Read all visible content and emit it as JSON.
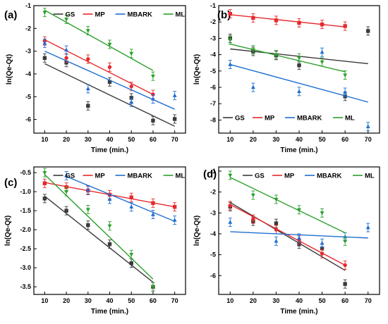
{
  "figure": {
    "colors": {
      "GS": "#3a3a3a",
      "MP": "#e8282b",
      "MBARK": "#1f6fd1",
      "ML": "#2ca02c"
    }
  },
  "chart_data": [
    {
      "type": "scatter",
      "panel_label": "(a)",
      "xlabel": "Time (min.)",
      "ylabel": "ln(Qe-Qt)",
      "xlim": [
        5,
        75
      ],
      "ylim": [
        -6.6,
        -1
      ],
      "xticks": [
        10,
        20,
        30,
        40,
        50,
        60,
        70
      ],
      "yticks": [
        -6,
        -5,
        -4,
        -3,
        -2,
        -1
      ],
      "legend_position": "top-center",
      "legend": [
        "GS",
        "MP",
        "MBARK",
        "ML"
      ],
      "series": [
        {
          "name": "GS",
          "marker": "square",
          "x": [
            10,
            20,
            30,
            40,
            50,
            60,
            70
          ],
          "y": [
            -3.3,
            -3.5,
            -5.4,
            -4.35,
            -5.05,
            -6.05,
            -5.98
          ],
          "fit": [
            [
              10,
              -3.55
            ],
            [
              70,
              -6.3
            ]
          ]
        },
        {
          "name": "MP",
          "marker": "circle",
          "x": [
            10,
            20,
            30,
            40,
            50,
            60
          ],
          "y": [
            -2.55,
            -3.3,
            -3.35,
            -3.7,
            -4.55,
            -4.9
          ],
          "fit": [
            [
              10,
              -2.5
            ],
            [
              60,
              -4.9
            ]
          ]
        },
        {
          "name": "MBARK",
          "marker": "triangle-up",
          "x": [
            10,
            20,
            30,
            50,
            60,
            70
          ],
          "y": [
            -2.65,
            -2.95,
            -4.65,
            -5.25,
            -5.1,
            -4.95
          ],
          "fit": [
            [
              10,
              -3.0
            ],
            [
              70,
              -5.55
            ]
          ]
        },
        {
          "name": "ML",
          "marker": "triangle-down",
          "x": [
            10,
            20,
            30,
            40,
            50,
            60
          ],
          "y": [
            -1.3,
            -1.6,
            -2.1,
            -2.7,
            -3.1,
            -4.1
          ],
          "fit": [
            [
              10,
              -1.2
            ],
            [
              60,
              -3.85
            ]
          ]
        }
      ]
    },
    {
      "type": "scatter",
      "panel_label": "(b)",
      "xlabel": "Time (min.)",
      "ylabel": "ln(Qe-Qt)",
      "xlim": [
        5,
        75
      ],
      "ylim": [
        -8.8,
        -1
      ],
      "xticks": [
        10,
        20,
        30,
        40,
        50,
        60,
        70
      ],
      "yticks": [
        -8,
        -7,
        -6,
        -5,
        -4,
        -3,
        -2,
        -1
      ],
      "legend_position": "bottom-center",
      "legend": [
        "GS",
        "MP",
        "MBARK",
        "ML"
      ],
      "series": [
        {
          "name": "GS",
          "marker": "square",
          "x": [
            10,
            20,
            30,
            40,
            60,
            70
          ],
          "y": [
            -3.0,
            -3.8,
            -4.05,
            -4.65,
            -6.55,
            -2.55
          ],
          "fit": [
            [
              10,
              -3.65
            ],
            [
              70,
              -4.55
            ]
          ]
        },
        {
          "name": "MP",
          "marker": "square",
          "x": [
            10,
            20,
            30,
            40,
            50,
            60
          ],
          "y": [
            -1.5,
            -1.75,
            -1.9,
            -2.05,
            -2.15,
            -2.25
          ],
          "fit": [
            [
              10,
              -1.55
            ],
            [
              60,
              -2.3
            ]
          ]
        },
        {
          "name": "MBARK",
          "marker": "triangle-up",
          "x": [
            10,
            20,
            40,
            50,
            60,
            70
          ],
          "y": [
            -4.6,
            -6.0,
            -6.25,
            -3.85,
            -6.3,
            -8.4
          ],
          "fit": [
            [
              10,
              -4.6
            ],
            [
              70,
              -6.9
            ]
          ]
        },
        {
          "name": "ML",
          "marker": "triangle-down",
          "x": [
            10,
            20,
            30,
            40,
            50,
            60
          ],
          "y": [
            -3.1,
            -3.7,
            -4.0,
            -4.2,
            -4.45,
            -5.25
          ],
          "fit": [
            [
              10,
              -3.35
            ],
            [
              60,
              -5.05
            ]
          ]
        }
      ]
    },
    {
      "type": "scatter",
      "panel_label": "(c)",
      "xlabel": "Time (min.)",
      "ylabel": "ln(Qe-Qt)",
      "xlim": [
        5,
        75
      ],
      "ylim": [
        -3.7,
        -0.35
      ],
      "xticks": [
        10,
        20,
        30,
        40,
        50,
        60,
        70
      ],
      "yticks": [
        -3.5,
        -3.0,
        -2.5,
        -2.0,
        -1.5,
        -1.0,
        -0.5
      ],
      "legend_position": "top-center",
      "legend": [
        "GS",
        "MP",
        "MBARK",
        "ML"
      ],
      "series": [
        {
          "name": "GS",
          "marker": "square",
          "x": [
            10,
            20,
            30,
            40,
            50,
            60
          ],
          "y": [
            -1.18,
            -1.5,
            -1.88,
            -2.38,
            -2.88,
            -3.5
          ],
          "fit": [
            [
              10,
              -1.12
            ],
            [
              60,
              -3.38
            ]
          ]
        },
        {
          "name": "MP",
          "marker": "square",
          "x": [
            10,
            20,
            30,
            40,
            50,
            60,
            70
          ],
          "y": [
            -0.78,
            -0.88,
            -0.97,
            -1.08,
            -1.15,
            -1.3,
            -1.4
          ],
          "fit": [
            [
              10,
              -0.76
            ],
            [
              70,
              -1.4
            ]
          ]
        },
        {
          "name": "MBARK",
          "marker": "triangle-up",
          "x": [
            20,
            30,
            40,
            50,
            60,
            70
          ],
          "y": [
            -0.58,
            -0.95,
            -1.2,
            -1.4,
            -1.6,
            -1.75
          ],
          "fit": [
            [
              20,
              -0.6
            ],
            [
              70,
              -1.78
            ]
          ]
        },
        {
          "name": "ML",
          "marker": "triangle-down",
          "x": [
            10,
            20,
            30,
            40,
            50,
            60
          ],
          "y": [
            -0.5,
            -1.0,
            -1.47,
            -1.9,
            -2.65,
            -3.5
          ],
          "fit": [
            [
              10,
              -0.55
            ],
            [
              60,
              -3.3
            ]
          ]
        }
      ]
    },
    {
      "type": "scatter",
      "panel_label": "(d)",
      "xlabel": "Time (min.)",
      "ylabel": "ln(Qe-Qt)",
      "xlim": [
        5,
        75
      ],
      "ylim": [
        -6.9,
        -0.8
      ],
      "xticks": [
        10,
        20,
        30,
        40,
        50,
        60,
        70
      ],
      "yticks": [
        -6,
        -5,
        -4,
        -3,
        -2,
        -1
      ],
      "legend_position": "top-center",
      "legend": [
        "GS",
        "MP",
        "MBARK",
        "ML"
      ],
      "series": [
        {
          "name": "GS",
          "marker": "square",
          "x": [
            10,
            20,
            30,
            40,
            50,
            60
          ],
          "y": [
            -2.7,
            -3.4,
            -3.5,
            -4.5,
            -4.7,
            -6.4
          ],
          "fit": [
            [
              10,
              -2.5
            ],
            [
              60,
              -5.75
            ]
          ]
        },
        {
          "name": "MP",
          "marker": "circle",
          "x": [
            10,
            20,
            30,
            40,
            50,
            60
          ],
          "y": [
            -2.65,
            -3.3,
            -3.8,
            -4.3,
            -4.95,
            -5.5
          ],
          "fit": [
            [
              10,
              -2.6
            ],
            [
              60,
              -5.5
            ]
          ]
        },
        {
          "name": "MBARK",
          "marker": "triangle-up",
          "x": [
            10,
            30,
            40,
            50,
            60,
            70
          ],
          "y": [
            -3.45,
            -4.35,
            -4.2,
            -4.45,
            -4.15,
            -3.7
          ],
          "fit": [
            [
              10,
              -3.9
            ],
            [
              70,
              -4.2
            ]
          ]
        },
        {
          "name": "ML",
          "marker": "triangle-down",
          "x": [
            10,
            20,
            30,
            40,
            50,
            60
          ],
          "y": [
            -1.2,
            -2.15,
            -2.35,
            -2.85,
            -3.0,
            -4.35
          ],
          "fit": [
            [
              10,
              -1.3
            ],
            [
              60,
              -3.95
            ]
          ]
        }
      ]
    }
  ]
}
